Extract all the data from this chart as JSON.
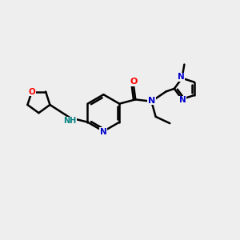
{
  "background_color": "#eeeeee",
  "bond_color": "#000000",
  "atom_colors": {
    "O": "#ff0000",
    "N": "#0000cc",
    "NH": "#008080",
    "C": "#000000"
  },
  "figsize": [
    3.0,
    3.0
  ],
  "dpi": 100
}
